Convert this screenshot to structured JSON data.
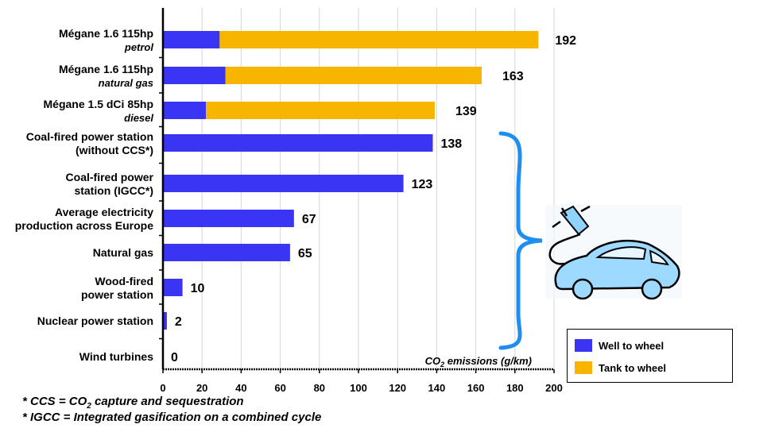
{
  "chart_data": {
    "type": "bar",
    "orientation": "horizontal",
    "stacked": true,
    "categories": [
      {
        "line1": "Mégane 1.6 115hp",
        "line2": "petrol",
        "line2_style": "italic"
      },
      {
        "line1": "Mégane 1.6 115hp",
        "line2": "natural gas",
        "line2_style": "italic"
      },
      {
        "line1": "Mégane 1.5 dCi 85hp",
        "line2": "diesel",
        "line2_style": "italic"
      },
      {
        "line1": "Coal-fired power station",
        "line2": "(without CCS*)",
        "line2_style": "normal"
      },
      {
        "line1": "Coal-fired power",
        "line2": "station (IGCC*)",
        "line2_style": "normal"
      },
      {
        "line1": "Average electricity",
        "line2": "production across Europe",
        "line2_style": "normal"
      },
      {
        "line1": "Natural gas",
        "line2": "",
        "line2_style": "normal"
      },
      {
        "line1": "Wood-fired",
        "line2": "power station",
        "line2_style": "normal"
      },
      {
        "line1": "Nuclear power station",
        "line2": "",
        "line2_style": "normal"
      },
      {
        "line1": "Wind turbines",
        "line2": "",
        "line2_style": "normal"
      }
    ],
    "series": [
      {
        "name": "Well to wheel",
        "color": "#3a35f2",
        "values": [
          29,
          32,
          22,
          138,
          123,
          67,
          65,
          10,
          2,
          0
        ]
      },
      {
        "name": "Tank to wheel",
        "color": "#f7b500",
        "values": [
          163,
          131,
          117,
          0,
          0,
          0,
          0,
          0,
          0,
          0
        ]
      }
    ],
    "totals": [
      "192",
      "163",
      "139",
      "138",
      "123",
      "67",
      "65",
      "10",
      "2",
      "0"
    ],
    "xlim": [
      0,
      200
    ],
    "xticks": [
      0,
      20,
      40,
      60,
      80,
      100,
      120,
      140,
      160,
      180,
      200
    ],
    "xlabel_prefix": "CO",
    "xlabel_sub": "2",
    "xlabel_suffix": " emissions (g/km)",
    "grid": "vertical",
    "legend_position": "bottom-right"
  },
  "footnotes": [
    {
      "prefix": "* CCS = CO",
      "sub": "2",
      "suffix": " capture and sequestration"
    },
    {
      "prefix": "* IGCC = Integrated gasification on a combined cycle",
      "sub": "",
      "suffix": ""
    }
  ],
  "annotation": {
    "brace_color": "#1e8ef0",
    "icon": "electric-car-icon"
  }
}
